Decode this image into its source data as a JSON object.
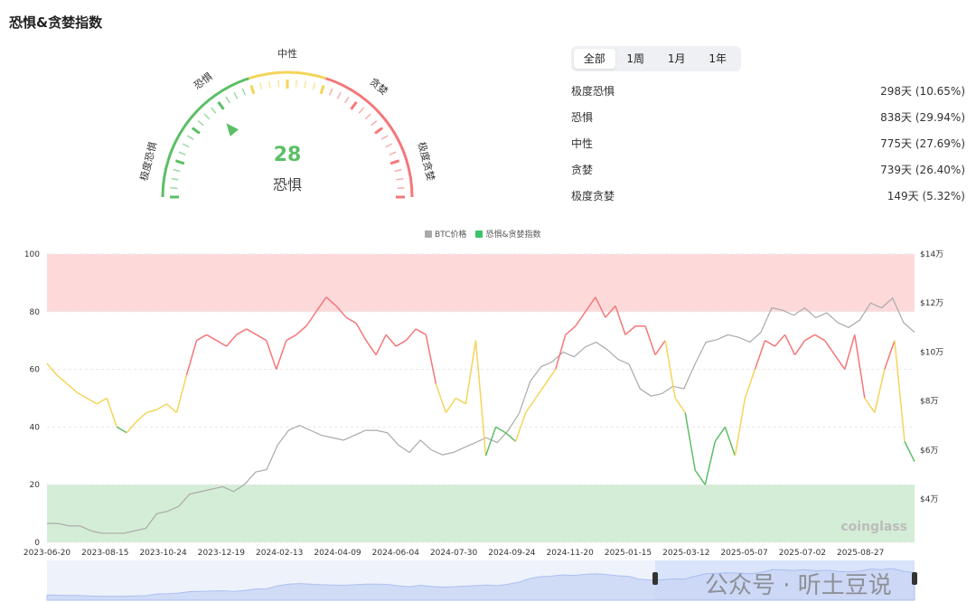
{
  "title": "恐惧&贪婪指数",
  "gauge": {
    "value": 28,
    "label": "恐惧",
    "zones": [
      "极度恐惧",
      "恐惧",
      "中性",
      "贪婪",
      "极度贪婪"
    ],
    "colors": {
      "fear": "#5cbf66",
      "neutral": "#f5d45a",
      "greed": "#f4777a"
    }
  },
  "tabs": [
    {
      "label": "全部",
      "active": true
    },
    {
      "label": "1周"
    },
    {
      "label": "1月"
    },
    {
      "label": "1年"
    }
  ],
  "stats": [
    {
      "label": "极度恐惧",
      "value": "298天 (10.65%)"
    },
    {
      "label": "恐惧",
      "value": "838天 (29.94%)"
    },
    {
      "label": "中性",
      "value": "775天 (27.69%)"
    },
    {
      "label": "贪婪",
      "value": "739天 (26.40%)"
    },
    {
      "label": "极度贪婪",
      "value": "149天 (5.32%)"
    }
  ],
  "watermark": "公众号 · 听土豆说",
  "brand": "coinglass",
  "chart_data": {
    "type": "line",
    "legend": [
      {
        "name": "BTC价格",
        "color": "#aaaaaa"
      },
      {
        "name": "恐惧&贪婪指数",
        "color": "#3cc46a"
      }
    ],
    "x_ticks": [
      "2023-06-20",
      "2023-08-15",
      "2023-10-24",
      "2023-12-19",
      "2024-02-13",
      "2024-04-09",
      "2024-06-04",
      "2024-07-30",
      "2024-09-24",
      "2024-11-20",
      "2025-01-15",
      "2025-03-12",
      "2025-05-07",
      "2025-07-02",
      "2025-08-27"
    ],
    "y_left": {
      "ticks": [
        0,
        20,
        40,
        60,
        80,
        100
      ],
      "range": [
        0,
        100
      ]
    },
    "y_right": {
      "ticks": [
        "$4万",
        "$6万",
        "$8万",
        "$10万",
        "$12万",
        "$14万"
      ],
      "values": [
        4,
        6,
        8,
        10,
        12,
        14
      ]
    },
    "bands": [
      {
        "from": 0,
        "to": 20,
        "color": "#d4edd6"
      },
      {
        "from": 80,
        "to": 100,
        "color": "#fdd9da"
      }
    ],
    "series": [
      {
        "name": "恐惧&贪婪指数",
        "values": [
          62,
          58,
          55,
          52,
          50,
          48,
          50,
          40,
          38,
          42,
          45,
          46,
          48,
          45,
          58,
          70,
          72,
          70,
          68,
          72,
          74,
          72,
          70,
          60,
          70,
          72,
          75,
          80,
          85,
          82,
          78,
          76,
          70,
          65,
          72,
          68,
          70,
          74,
          72,
          55,
          45,
          50,
          48,
          70,
          30,
          40,
          38,
          35,
          45,
          50,
          55,
          60,
          72,
          75,
          80,
          85,
          78,
          82,
          72,
          75,
          75,
          65,
          70,
          50,
          45,
          25,
          20,
          35,
          40,
          30,
          50,
          60,
          70,
          68,
          72,
          65,
          70,
          72,
          70,
          65,
          60,
          72,
          50,
          45,
          60,
          70,
          35,
          28
        ]
      },
      {
        "name": "BTC价格",
        "values": [
          3.0,
          3.0,
          2.9,
          2.9,
          2.7,
          2.6,
          2.6,
          2.6,
          2.7,
          2.8,
          3.4,
          3.5,
          3.7,
          4.2,
          4.3,
          4.4,
          4.5,
          4.3,
          4.6,
          5.1,
          5.2,
          6.2,
          6.8,
          7.0,
          6.8,
          6.6,
          6.5,
          6.4,
          6.6,
          6.8,
          6.8,
          6.7,
          6.2,
          5.9,
          6.4,
          6.0,
          5.8,
          5.9,
          6.1,
          6.3,
          6.5,
          6.3,
          6.8,
          7.5,
          8.8,
          9.4,
          9.6,
          10.0,
          9.8,
          10.2,
          10.4,
          10.1,
          9.7,
          9.5,
          8.5,
          8.2,
          8.3,
          8.6,
          8.5,
          9.5,
          10.4,
          10.5,
          10.7,
          10.6,
          10.4,
          10.8,
          11.8,
          11.7,
          11.5,
          11.8,
          11.4,
          11.6,
          11.2,
          11.0,
          11.3,
          12.0,
          11.8,
          12.2,
          11.2,
          10.8
        ]
      }
    ]
  }
}
